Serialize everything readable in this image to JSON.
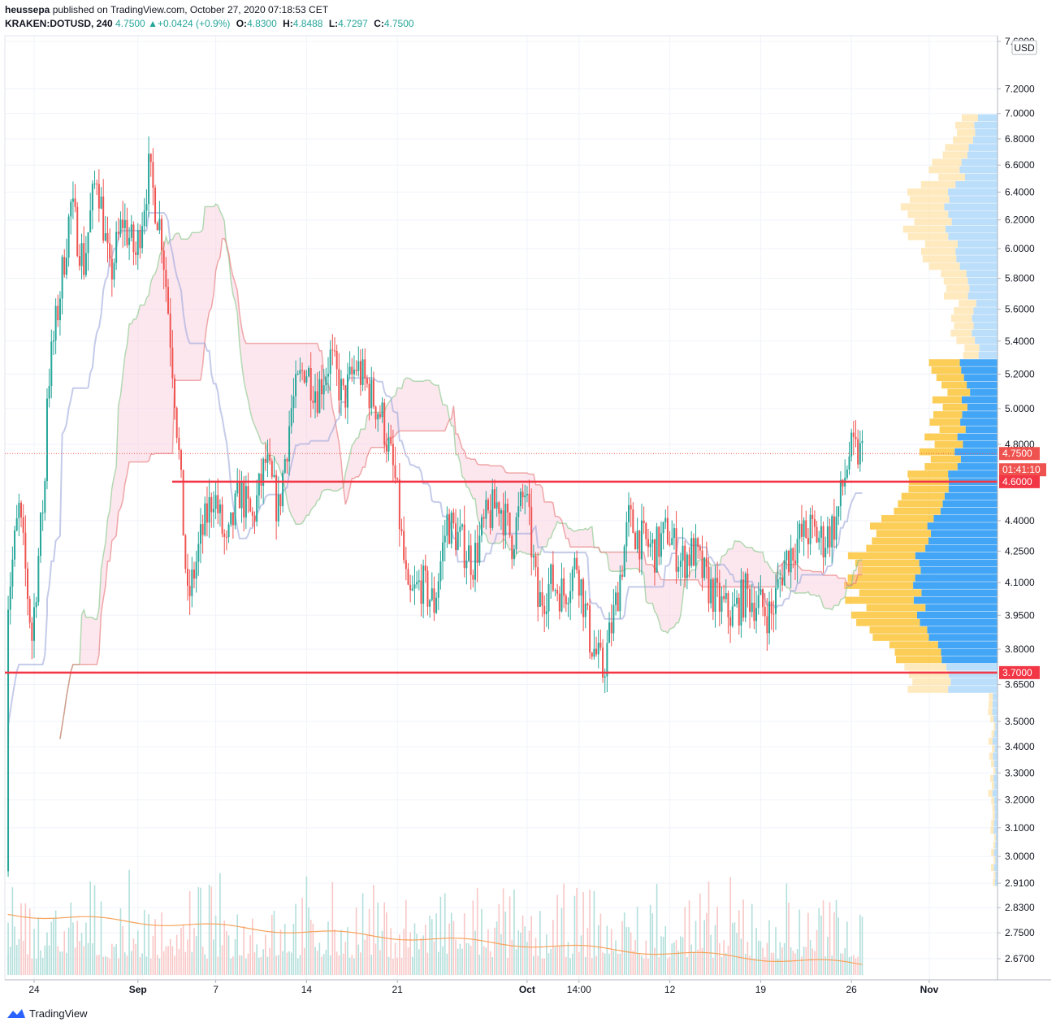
{
  "header": {
    "publisher": "heussepa",
    "published_text": "published on TradingView.com, October 27, 2020 07:18:53 CET",
    "symbol": "KRAKEN:DOTUSD, 240",
    "last": "4.7500",
    "change": "+0.0424 (+0.9%)",
    "o_label": "O:",
    "o": "4.8300",
    "h_label": "H:",
    "h": "4.8488",
    "l_label": "L:",
    "l": "4.7297",
    "c_label": "C:",
    "c": "4.7500"
  },
  "currency_badge": "USD",
  "footer": {
    "brand": "TradingView"
  },
  "colors": {
    "up": "#26a69a",
    "down": "#ef5350",
    "level": "#f23645",
    "blue": "#2196f3",
    "orange": "#f5a623"
  },
  "chart_data": {
    "type": "candlestick",
    "y_axis_ticks": [
      "7.6000",
      "7.2000",
      "7.0000",
      "6.8000",
      "6.6000",
      "6.4000",
      "6.2000",
      "6.0000",
      "5.8000",
      "5.6000",
      "5.4000",
      "5.2000",
      "5.0000",
      "4.8000",
      "4.4000",
      "4.2500",
      "4.1000",
      "3.9500",
      "3.8000",
      "3.6500",
      "3.5000",
      "3.4000",
      "3.3000",
      "3.2000",
      "3.1000",
      "3.0000",
      "2.9100",
      "2.8300",
      "2.7500",
      "2.6700"
    ],
    "x_axis_ticks": [
      {
        "label": "24",
        "bold": false,
        "date": "2020-08-24"
      },
      {
        "label": "Sep",
        "bold": true,
        "date": "2020-09-01"
      },
      {
        "label": "7",
        "bold": false,
        "date": "2020-09-07"
      },
      {
        "label": "14",
        "bold": false,
        "date": "2020-09-14"
      },
      {
        "label": "21",
        "bold": false,
        "date": "2020-09-21"
      },
      {
        "label": "Oct",
        "bold": true,
        "date": "2020-10-01"
      },
      {
        "label": "14:00",
        "bold": false,
        "date": "2020-10-05"
      },
      {
        "label": "12",
        "bold": false,
        "date": "2020-10-12"
      },
      {
        "label": "19",
        "bold": false,
        "date": "2020-10-19"
      },
      {
        "label": "26",
        "bold": false,
        "date": "2020-10-26"
      },
      {
        "label": "Nov",
        "bold": true,
        "date": "2020-11-01"
      }
    ],
    "price_tags": [
      {
        "label": "4.7500",
        "kind": "last"
      },
      {
        "label": "01:41:10",
        "kind": "countdown"
      },
      {
        "label": "4.6000",
        "kind": "level"
      },
      {
        "label": "3.7000",
        "kind": "level"
      }
    ],
    "horizontal_levels": [
      4.6,
      3.7
    ],
    "last_price": 4.75,
    "close_path": [
      [
        "2020-08-22",
        2.95
      ],
      [
        "2020-08-22",
        3.95
      ],
      [
        "2020-08-23",
        4.45
      ],
      [
        "2020-08-24",
        3.85
      ],
      [
        "2020-08-25",
        4.6
      ],
      [
        "2020-08-25",
        5.0
      ],
      [
        "2020-08-26",
        5.6
      ],
      [
        "2020-08-27",
        6.3
      ],
      [
        "2020-08-28",
        5.9
      ],
      [
        "2020-08-29",
        6.55
      ],
      [
        "2020-08-30",
        5.8
      ],
      [
        "2020-08-31",
        6.2
      ],
      [
        "2020-09-01",
        5.95
      ],
      [
        "2020-09-02",
        6.55
      ],
      [
        "2020-09-03",
        6.1
      ],
      [
        "2020-09-04",
        5.1
      ],
      [
        "2020-09-05",
        4.0
      ],
      [
        "2020-09-06",
        4.3
      ],
      [
        "2020-09-07",
        4.55
      ],
      [
        "2020-09-08",
        4.25
      ],
      [
        "2020-09-09",
        4.55
      ],
      [
        "2020-09-10",
        4.4
      ],
      [
        "2020-09-11",
        4.7
      ],
      [
        "2020-09-12",
        4.45
      ],
      [
        "2020-09-13",
        5.0
      ],
      [
        "2020-09-14",
        5.25
      ],
      [
        "2020-09-15",
        5.1
      ],
      [
        "2020-09-16",
        5.3
      ],
      [
        "2020-09-17",
        5.05
      ],
      [
        "2020-09-18",
        5.25
      ],
      [
        "2020-09-19",
        5.1
      ],
      [
        "2020-09-20",
        4.95
      ],
      [
        "2020-09-21",
        4.6
      ],
      [
        "2020-09-22",
        4.0
      ],
      [
        "2020-09-23",
        4.1
      ],
      [
        "2020-09-24",
        4.0
      ],
      [
        "2020-09-25",
        4.4
      ],
      [
        "2020-09-26",
        4.3
      ],
      [
        "2020-09-27",
        4.2
      ],
      [
        "2020-09-28",
        4.4
      ],
      [
        "2020-09-29",
        4.5
      ],
      [
        "2020-09-30",
        4.3
      ],
      [
        "2020-10-01",
        4.55
      ],
      [
        "2020-10-02",
        4.0
      ],
      [
        "2020-10-03",
        4.1
      ],
      [
        "2020-10-04",
        4.05
      ],
      [
        "2020-10-05",
        4.2
      ],
      [
        "2020-10-06",
        3.85
      ],
      [
        "2020-10-07",
        3.7
      ],
      [
        "2020-10-08",
        4.0
      ],
      [
        "2020-10-09",
        4.4
      ],
      [
        "2020-10-10",
        4.3
      ],
      [
        "2020-10-11",
        4.25
      ],
      [
        "2020-10-12",
        4.35
      ],
      [
        "2020-10-13",
        4.2
      ],
      [
        "2020-10-14",
        4.25
      ],
      [
        "2020-10-15",
        4.1
      ],
      [
        "2020-10-16",
        4.0
      ],
      [
        "2020-10-17",
        3.95
      ],
      [
        "2020-10-18",
        4.05
      ],
      [
        "2020-10-19",
        4.0
      ],
      [
        "2020-10-20",
        3.95
      ],
      [
        "2020-10-21",
        4.2
      ],
      [
        "2020-10-22",
        4.3
      ],
      [
        "2020-10-23",
        4.35
      ],
      [
        "2020-10-24",
        4.3
      ],
      [
        "2020-10-25",
        4.4
      ],
      [
        "2020-10-26",
        4.75
      ],
      [
        "2020-10-27",
        4.75
      ]
    ]
  }
}
